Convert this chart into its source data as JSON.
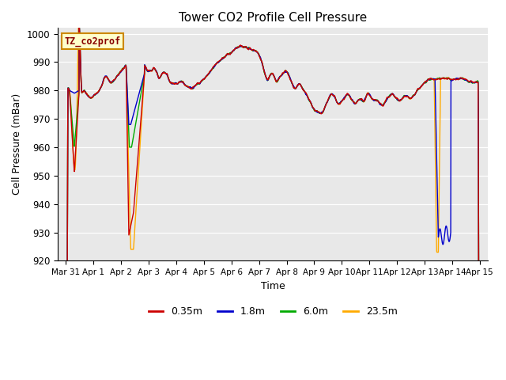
{
  "title": "Tower CO2 Profile Cell Pressure",
  "xlabel": "Time",
  "ylabel": "Cell Pressure (mBar)",
  "ylim": [
    920,
    1002
  ],
  "yticks": [
    920,
    930,
    940,
    950,
    960,
    970,
    980,
    990,
    1000
  ],
  "plot_bg": "#e8e8e8",
  "fig_bg": "#ffffff",
  "legend_label": "TZ_co2prof",
  "series_labels": [
    "0.35m",
    "1.8m",
    "6.0m",
    "23.5m"
  ],
  "series_colors": [
    "#cc0000",
    "#0000cc",
    "#00aa00",
    "#ffaa00"
  ],
  "xtick_labels": [
    "Mar 31",
    "Apr 1",
    "Apr 2",
    "Apr 3",
    "Apr 4",
    "Apr 5",
    "Apr 6",
    "Apr 7",
    "Apr 8",
    "Apr 9",
    "Apr 10",
    "Apr 11",
    "Apr 12",
    "Apr 13",
    "Apr 14",
    "Apr 15"
  ],
  "linewidth": 1.0
}
